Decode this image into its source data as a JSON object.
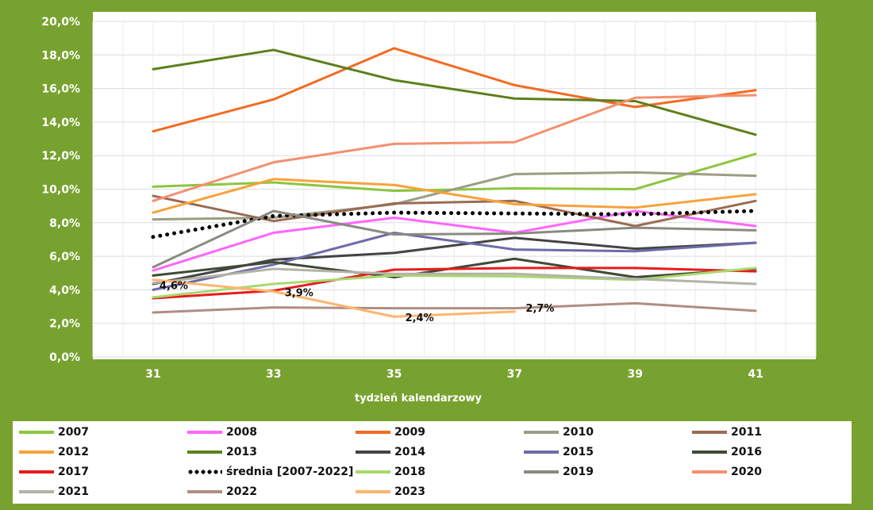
{
  "chart_data": {
    "type": "line",
    "title": "",
    "xlabel": "tydzień kalendarzowy",
    "ylabel": "",
    "x": [
      31,
      33,
      35,
      37,
      39,
      41
    ],
    "x_tick_labels": [
      "31",
      "33",
      "35",
      "37",
      "39",
      "41"
    ],
    "ylim": [
      0,
      20
    ],
    "y_tick_labels": [
      "0,0%",
      "2,0%",
      "4,0%",
      "6,0%",
      "8,0%",
      "10,0%",
      "12,0%",
      "14,0%",
      "16,0%",
      "18,0%",
      "20,0%"
    ],
    "grid": true,
    "legend_position": "bottom",
    "series": [
      {
        "name": "2007",
        "color": "#8DC63F",
        "style": "solid",
        "values": [
          10.15,
          10.4,
          9.9,
          10.05,
          10.0,
          12.1
        ]
      },
      {
        "name": "2008",
        "color": "#FF66FF",
        "style": "solid",
        "values": [
          5.15,
          7.4,
          8.3,
          7.4,
          8.7,
          7.8
        ]
      },
      {
        "name": "2009",
        "color": "#F26B21",
        "style": "solid",
        "values": [
          13.45,
          15.35,
          18.4,
          16.2,
          14.9,
          15.9
        ]
      },
      {
        "name": "2010",
        "color": "#9D9D84",
        "style": "solid",
        "values": [
          8.2,
          8.3,
          9.1,
          10.9,
          11.0,
          10.8
        ]
      },
      {
        "name": "2011",
        "color": "#9A6B52",
        "style": "solid",
        "values": [
          9.6,
          8.1,
          9.15,
          9.3,
          7.8,
          9.3
        ]
      },
      {
        "name": "2012",
        "color": "#F7A23B",
        "style": "solid",
        "values": [
          8.6,
          10.6,
          10.25,
          9.1,
          8.9,
          9.7
        ]
      },
      {
        "name": "2013",
        "color": "#5E7F1A",
        "style": "solid",
        "values": [
          17.15,
          18.3,
          16.5,
          15.4,
          15.25,
          13.25
        ]
      },
      {
        "name": "2014",
        "color": "#444444",
        "style": "solid",
        "values": [
          4.35,
          5.8,
          6.2,
          7.1,
          6.45,
          6.8
        ]
      },
      {
        "name": "2015",
        "color": "#6E6BA8",
        "style": "solid",
        "values": [
          4.0,
          5.5,
          7.4,
          6.4,
          6.3,
          6.8
        ]
      },
      {
        "name": "2016",
        "color": "#3F4A36",
        "style": "solid",
        "values": [
          4.85,
          5.65,
          4.75,
          5.85,
          4.75,
          5.25
        ]
      },
      {
        "name": "2017",
        "color": "#E81C1C",
        "style": "solid",
        "values": [
          3.5,
          3.95,
          5.2,
          5.3,
          5.3,
          5.1
        ]
      },
      {
        "name": "średnia [2007-2022]",
        "color": "#000000",
        "style": "dotted",
        "values": [
          7.15,
          8.4,
          8.6,
          8.55,
          8.5,
          8.7
        ]
      },
      {
        "name": "2018",
        "color": "#A9D86E",
        "style": "solid",
        "values": [
          3.55,
          4.35,
          4.85,
          4.8,
          4.6,
          5.3
        ]
      },
      {
        "name": "2019",
        "color": "#8A8A80",
        "style": "solid",
        "values": [
          5.35,
          8.7,
          7.3,
          7.35,
          7.7,
          7.55
        ]
      },
      {
        "name": "2020",
        "color": "#F4906E",
        "style": "solid",
        "values": [
          9.3,
          11.6,
          12.7,
          12.8,
          15.45,
          15.6
        ]
      },
      {
        "name": "2021",
        "color": "#B3B3A6",
        "style": "solid",
        "values": [
          4.4,
          5.25,
          4.95,
          4.95,
          4.65,
          4.35
        ]
      },
      {
        "name": "2022",
        "color": "#AF8E84",
        "style": "solid",
        "values": [
          2.65,
          2.95,
          2.9,
          2.9,
          3.2,
          2.75
        ]
      },
      {
        "name": "2023",
        "color": "#FDB56E",
        "style": "solid",
        "values": [
          4.6,
          3.9,
          2.4,
          2.7,
          null,
          null
        ]
      }
    ],
    "data_labels": [
      {
        "series": "2023",
        "x": 31,
        "text": "4,6%"
      },
      {
        "series": "2023",
        "x": 33,
        "text": "3,9%"
      },
      {
        "series": "2023",
        "x": 35,
        "text": "2,4%"
      },
      {
        "series": "2023",
        "x": 37,
        "text": "2,7%"
      }
    ]
  }
}
